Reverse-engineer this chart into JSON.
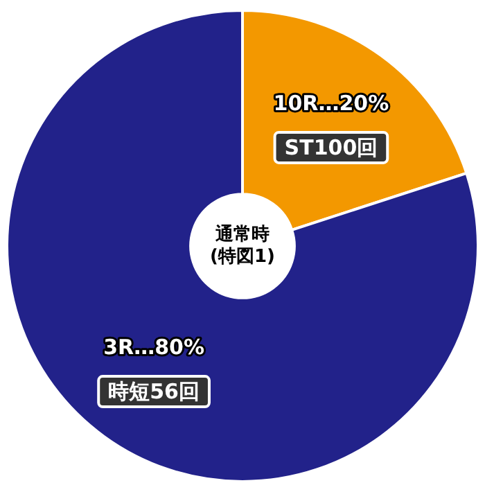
{
  "chart_data": {
    "type": "donut",
    "title": "通常時\n(特図1)",
    "categories": [
      "10R…20%",
      "3R…80%"
    ],
    "values": [
      20,
      80
    ],
    "colors": [
      "#f39800",
      "#22228a"
    ],
    "annotations": [
      "ST100回",
      "時短56回"
    ],
    "legend": false
  }
}
